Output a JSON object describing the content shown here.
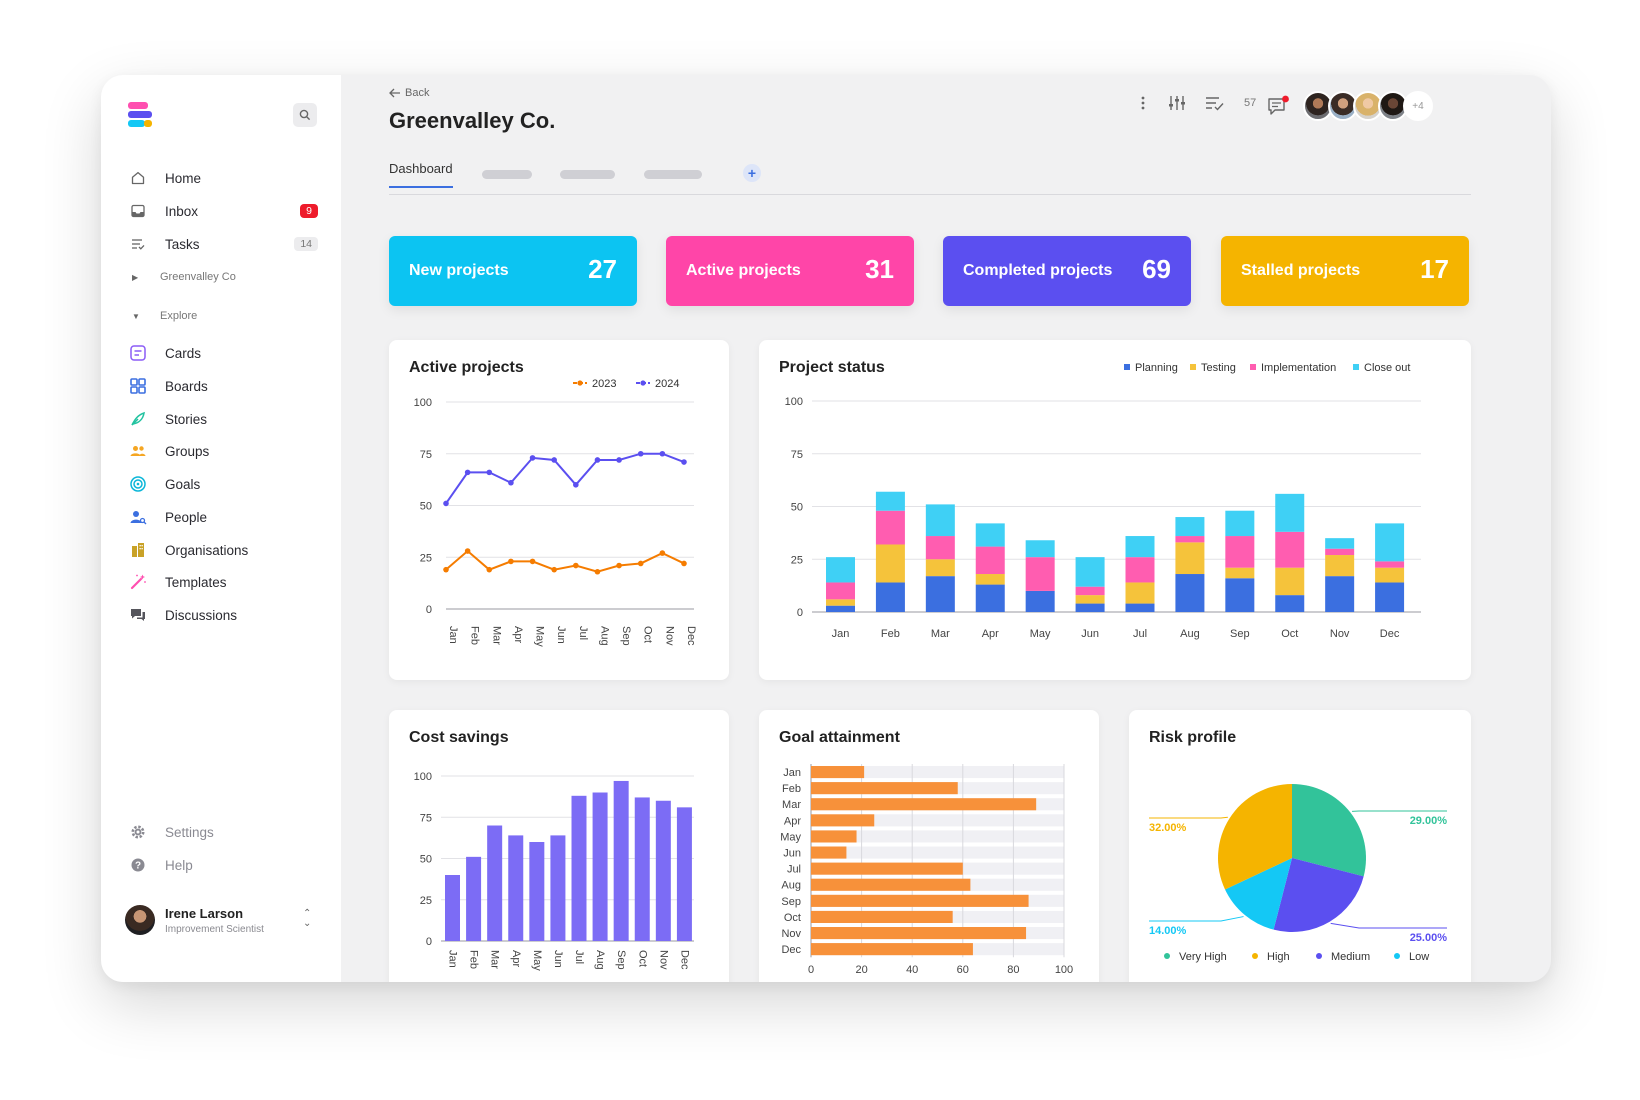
{
  "sidebar": {
    "nav": [
      {
        "label": "Home",
        "icon": "home-icon"
      },
      {
        "label": "Inbox",
        "icon": "inbox-icon",
        "badge": "9"
      },
      {
        "label": "Tasks",
        "icon": "tasks-icon",
        "badge": "14"
      }
    ],
    "workspace_section": "Greenvalley Co",
    "explore_section": "Explore",
    "explore": [
      {
        "label": "Cards",
        "icon": "cards-icon",
        "color": "#8b5cf6"
      },
      {
        "label": "Boards",
        "icon": "boards-icon",
        "color": "#3b6fe0"
      },
      {
        "label": "Stories",
        "icon": "stories-icon",
        "color": "#22c3a0"
      },
      {
        "label": "Groups",
        "icon": "groups-icon",
        "color": "#f5a623"
      },
      {
        "label": "Goals",
        "icon": "goals-icon",
        "color": "#0ab6d8"
      },
      {
        "label": "People",
        "icon": "people-icon",
        "color": "#3b6fe0"
      },
      {
        "label": "Organisations",
        "icon": "organisations-icon",
        "color": "#c9a227"
      },
      {
        "label": "Templates",
        "icon": "templates-icon",
        "color": "#ff4fb0"
      },
      {
        "label": "Discussions",
        "icon": "discussions-icon",
        "color": "#55555c"
      }
    ],
    "settings": "Settings",
    "help": "Help",
    "user": {
      "name": "Irene Larson",
      "role": "Improvement Scientist"
    }
  },
  "header": {
    "back": "Back",
    "title": "Greenvalley Co.",
    "tab_active": "Dashboard",
    "count": "57",
    "more_avatars": "+4"
  },
  "stats": [
    {
      "label": "New projects",
      "value": "27",
      "color": "#0cc4f2"
    },
    {
      "label": "Active projects",
      "value": "31",
      "color": "#ff45a8"
    },
    {
      "label": "Completed projects",
      "value": "69",
      "color": "#5b4ff0"
    },
    {
      "label": "Stalled projects",
      "value": "17",
      "color": "#f5b400"
    }
  ],
  "chart_data": [
    {
      "type": "line",
      "title": "Active projects",
      "categories": [
        "Jan",
        "Feb",
        "Mar",
        "Apr",
        "May",
        "Jun",
        "Jul",
        "Aug",
        "Sep",
        "Oct",
        "Nov",
        "Dec"
      ],
      "series": [
        {
          "name": "2023",
          "color": "#f57c00",
          "values": [
            19,
            28,
            19,
            23,
            23,
            19,
            21,
            18,
            21,
            22,
            27,
            22
          ]
        },
        {
          "name": "2024",
          "color": "#5b4ff0",
          "values": [
            51,
            66,
            66,
            61,
            73,
            72,
            60,
            72,
            72,
            75,
            75,
            71
          ]
        }
      ],
      "ylim": [
        0,
        100
      ],
      "yticks": [
        0,
        25,
        50,
        75,
        100
      ],
      "legend": "top-right",
      "grid": true
    },
    {
      "type": "bar",
      "stacked": true,
      "title": "Project status",
      "categories": [
        "Jan",
        "Feb",
        "Mar",
        "Apr",
        "May",
        "Jun",
        "Jul",
        "Aug",
        "Sep",
        "Oct",
        "Nov",
        "Dec"
      ],
      "series": [
        {
          "name": "Planning",
          "color": "#3b6fe0",
          "values": [
            3,
            14,
            17,
            13,
            10,
            4,
            4,
            18,
            16,
            8,
            17,
            14
          ]
        },
        {
          "name": "Testing",
          "color": "#f5c33b",
          "values": [
            3,
            18,
            8,
            5,
            0,
            4,
            10,
            15,
            5,
            13,
            10,
            7
          ]
        },
        {
          "name": "Implementation",
          "color": "#ff5db0",
          "values": [
            8,
            16,
            11,
            13,
            16,
            4,
            12,
            3,
            15,
            17,
            3,
            3
          ]
        },
        {
          "name": "Close out",
          "color": "#3fd0f5",
          "values": [
            12,
            9,
            15,
            11,
            8,
            14,
            10,
            9,
            12,
            18,
            5,
            18
          ]
        }
      ],
      "ylim": [
        0,
        100
      ],
      "yticks": [
        0,
        25,
        50,
        75,
        100
      ],
      "legend": "top-right",
      "grid": true
    },
    {
      "type": "bar",
      "title": "Cost savings",
      "categories": [
        "Jan",
        "Feb",
        "Mar",
        "Apr",
        "May",
        "Jun",
        "Jul",
        "Aug",
        "Sep",
        "Oct",
        "Nov",
        "Dec"
      ],
      "values": [
        40,
        51,
        70,
        64,
        60,
        64,
        88,
        90,
        97,
        87,
        85,
        81
      ],
      "color": "#7c6cf5",
      "ylim": [
        0,
        100
      ],
      "yticks": [
        0,
        25,
        50,
        75,
        100
      ],
      "grid": true
    },
    {
      "type": "bar",
      "orientation": "horizontal",
      "title": "Goal attainment",
      "categories": [
        "Jan",
        "Feb",
        "Mar",
        "Apr",
        "May",
        "Jun",
        "Jul",
        "Aug",
        "Sep",
        "Oct",
        "Nov",
        "Dec"
      ],
      "values": [
        21,
        58,
        89,
        25,
        18,
        14,
        60,
        63,
        86,
        56,
        85,
        64
      ],
      "color": "#f7913a",
      "xlim": [
        0,
        100
      ],
      "xticks": [
        0,
        20,
        40,
        60,
        80,
        100
      ],
      "grid": true
    },
    {
      "type": "pie",
      "title": "Risk profile",
      "slices": [
        {
          "label": "Very High",
          "value": 29.0,
          "display": "29.00%",
          "color": "#32c39a"
        },
        {
          "label": "Medium",
          "value": 25.0,
          "display": "25.00%",
          "color": "#5b4ff0"
        },
        {
          "label": "Low",
          "value": 14.0,
          "display": "14.00%",
          "color": "#14c8f5"
        },
        {
          "label": "High",
          "value": 32.0,
          "display": "32.00%",
          "color": "#f5b400"
        }
      ],
      "legend": "bottom"
    }
  ]
}
